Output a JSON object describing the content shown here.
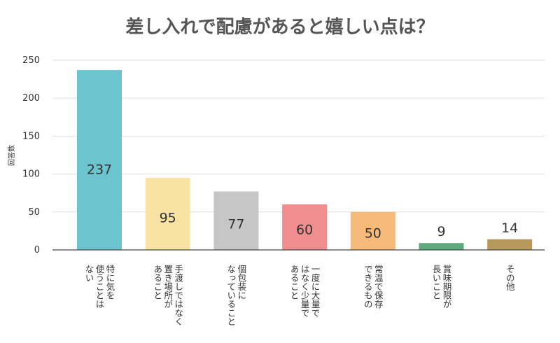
{
  "chart_data": {
    "type": "bar",
    "title": "差し入れで配慮があると嬉しい点は？",
    "ylabel": "回答数",
    "ylim": [
      0,
      250
    ],
    "yticks": [
      0,
      50,
      100,
      150,
      200,
      250
    ],
    "grid": true,
    "categories": [
      [
        "特に気を",
        "使うことは",
        "ない"
      ],
      [
        "手渡しではなく",
        "置き場所が",
        "あること"
      ],
      [
        "個包装に",
        "なっていること"
      ],
      [
        "一度に大量で",
        "はなく少量で",
        "あること"
      ],
      [
        "常温で保存",
        "できるもの"
      ],
      [
        "賞味期限が",
        "長いこと"
      ],
      [
        "その他"
      ]
    ],
    "values": [
      237,
      95,
      77,
      60,
      50,
      9,
      14
    ],
    "colors": [
      "#6cc4cf",
      "#f8e3a3",
      "#c6c6c6",
      "#ef8d8f",
      "#f6ba7b",
      "#5eaa7c",
      "#b6995c"
    ]
  }
}
